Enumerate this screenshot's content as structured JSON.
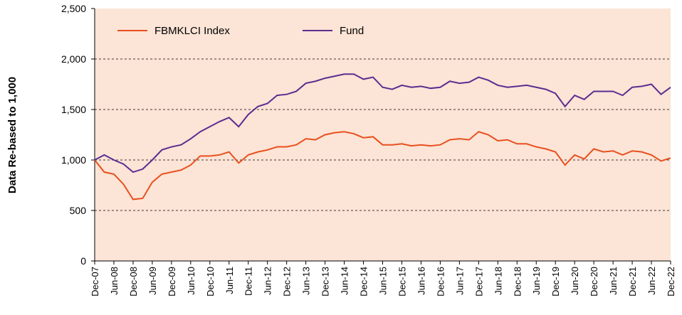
{
  "chart_data": {
    "type": "line",
    "ylabel": "Data Re-based to 1,000",
    "categories": [
      "Dec-07",
      null,
      "Jun-08",
      null,
      "Dec-08",
      null,
      "Jun-09",
      null,
      "Dec-09",
      null,
      "Jun-10",
      null,
      "Dec-10",
      null,
      "Jun-11",
      null,
      "Dec-11",
      null,
      "Jun-12",
      null,
      "Dec-12",
      null,
      "Jun-13",
      null,
      "Dec-13",
      null,
      "Jun-14",
      null,
      "Dec-14",
      null,
      "Jun-15",
      null,
      "Dec-15",
      null,
      "Jun-16",
      null,
      "Dec-16",
      null,
      "Jun-17",
      null,
      "Dec-17",
      null,
      "Jun-18",
      null,
      "Dec-18",
      null,
      "Jun-19",
      null,
      "Dec-19",
      null,
      "Jun-20",
      null,
      "Dec-20",
      null,
      "Jun-21",
      null,
      "Dec-21",
      null,
      "Jun-22",
      null,
      "Dec-22"
    ],
    "series": [
      {
        "name": "FBMKLCI Index",
        "color": "#e8501e",
        "values": [
          1000,
          880,
          860,
          760,
          610,
          620,
          780,
          860,
          880,
          900,
          950,
          1040,
          1040,
          1050,
          1080,
          970,
          1050,
          1080,
          1100,
          1130,
          1130,
          1150,
          1210,
          1200,
          1250,
          1270,
          1280,
          1260,
          1220,
          1230,
          1150,
          1150,
          1160,
          1140,
          1150,
          1140,
          1150,
          1200,
          1210,
          1200,
          1280,
          1250,
          1190,
          1200,
          1160,
          1160,
          1130,
          1110,
          1080,
          950,
          1050,
          1010,
          1110,
          1080,
          1090,
          1050,
          1090,
          1080,
          1050,
          990,
          1020
        ]
      },
      {
        "name": "Fund",
        "color": "#5a2d91",
        "values": [
          1000,
          1050,
          1000,
          960,
          880,
          910,
          1000,
          1100,
          1130,
          1150,
          1210,
          1280,
          1330,
          1380,
          1420,
          1330,
          1450,
          1530,
          1560,
          1640,
          1650,
          1680,
          1760,
          1780,
          1810,
          1830,
          1850,
          1850,
          1800,
          1820,
          1720,
          1700,
          1740,
          1720,
          1730,
          1710,
          1720,
          1780,
          1760,
          1770,
          1820,
          1790,
          1740,
          1720,
          1730,
          1740,
          1720,
          1700,
          1660,
          1530,
          1640,
          1600,
          1680,
          1680,
          1680,
          1640,
          1720,
          1730,
          1750,
          1650,
          1720
        ]
      }
    ],
    "ylim": [
      0,
      2500
    ],
    "yticks": [
      0,
      500,
      {
        "value": 1000,
        "label": "1,000"
      },
      {
        "value": 1500,
        "label": "1,500"
      },
      {
        "value": 2000,
        "label": "2,000"
      },
      {
        "value": 2500,
        "label": "2,500"
      }
    ],
    "grid": true,
    "legend": "top-left",
    "background": "#fce4d6"
  }
}
